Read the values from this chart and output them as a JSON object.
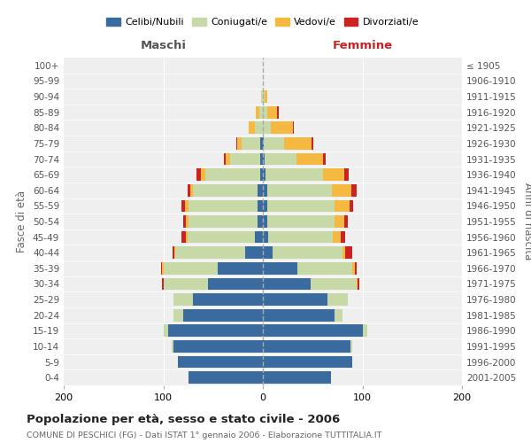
{
  "age_groups": [
    "0-4",
    "5-9",
    "10-14",
    "15-19",
    "20-24",
    "25-29",
    "30-34",
    "35-39",
    "40-44",
    "45-49",
    "50-54",
    "55-59",
    "60-64",
    "65-69",
    "70-74",
    "75-79",
    "80-84",
    "85-89",
    "90-94",
    "95-99",
    "100+"
  ],
  "birth_years": [
    "2001-2005",
    "1996-2000",
    "1991-1995",
    "1986-1990",
    "1981-1985",
    "1976-1980",
    "1971-1975",
    "1966-1970",
    "1961-1965",
    "1956-1960",
    "1951-1955",
    "1946-1950",
    "1941-1945",
    "1936-1940",
    "1931-1935",
    "1926-1930",
    "1921-1925",
    "1916-1920",
    "1911-1915",
    "1906-1910",
    "≤ 1905"
  ],
  "maschi": {
    "celibi": [
      75,
      85,
      90,
      95,
      80,
      70,
      55,
      45,
      18,
      8,
      5,
      5,
      5,
      3,
      3,
      3,
      0,
      0,
      0,
      0,
      0
    ],
    "coniugati": [
      0,
      0,
      2,
      5,
      10,
      20,
      45,
      55,
      70,
      68,
      70,
      70,
      65,
      55,
      30,
      18,
      8,
      4,
      2,
      0,
      0
    ],
    "vedovi": [
      0,
      0,
      0,
      0,
      0,
      0,
      0,
      1,
      1,
      1,
      2,
      3,
      3,
      4,
      4,
      5,
      6,
      3,
      0,
      0,
      0
    ],
    "divorziati": [
      0,
      0,
      0,
      0,
      0,
      0,
      1,
      1,
      2,
      5,
      3,
      4,
      3,
      5,
      2,
      1,
      0,
      0,
      0,
      0,
      0
    ]
  },
  "femmine": {
    "nubili": [
      68,
      90,
      88,
      100,
      72,
      65,
      48,
      35,
      10,
      5,
      4,
      4,
      4,
      3,
      2,
      1,
      0,
      0,
      0,
      0,
      0
    ],
    "coniugate": [
      0,
      0,
      2,
      5,
      8,
      20,
      46,
      55,
      70,
      65,
      68,
      68,
      65,
      57,
      32,
      20,
      8,
      4,
      2,
      0,
      0
    ],
    "vedove": [
      0,
      0,
      0,
      0,
      0,
      0,
      1,
      2,
      3,
      8,
      10,
      15,
      20,
      22,
      26,
      28,
      22,
      10,
      2,
      0,
      0
    ],
    "divorziate": [
      0,
      0,
      0,
      0,
      0,
      0,
      2,
      2,
      7,
      5,
      3,
      4,
      5,
      4,
      3,
      2,
      1,
      2,
      0,
      0,
      0
    ]
  },
  "color_celibi": "#3a6b9e",
  "color_coniugati": "#c8d9a8",
  "color_vedovi": "#f5b942",
  "color_divorziati": "#cc2222",
  "title": "Popolazione per età, sesso e stato civile - 2006",
  "subtitle": "COMUNE DI PESCHICI (FG) - Dati ISTAT 1° gennaio 2006 - Elaborazione TUTTITALIA.IT",
  "xlabel_left": "Maschi",
  "xlabel_right": "Femmine",
  "ylabel_left": "Fasce di età",
  "ylabel_right": "Anni di nascita",
  "xlim": 200,
  "bg_color": "#ffffff",
  "plot_bg": "#efefef"
}
